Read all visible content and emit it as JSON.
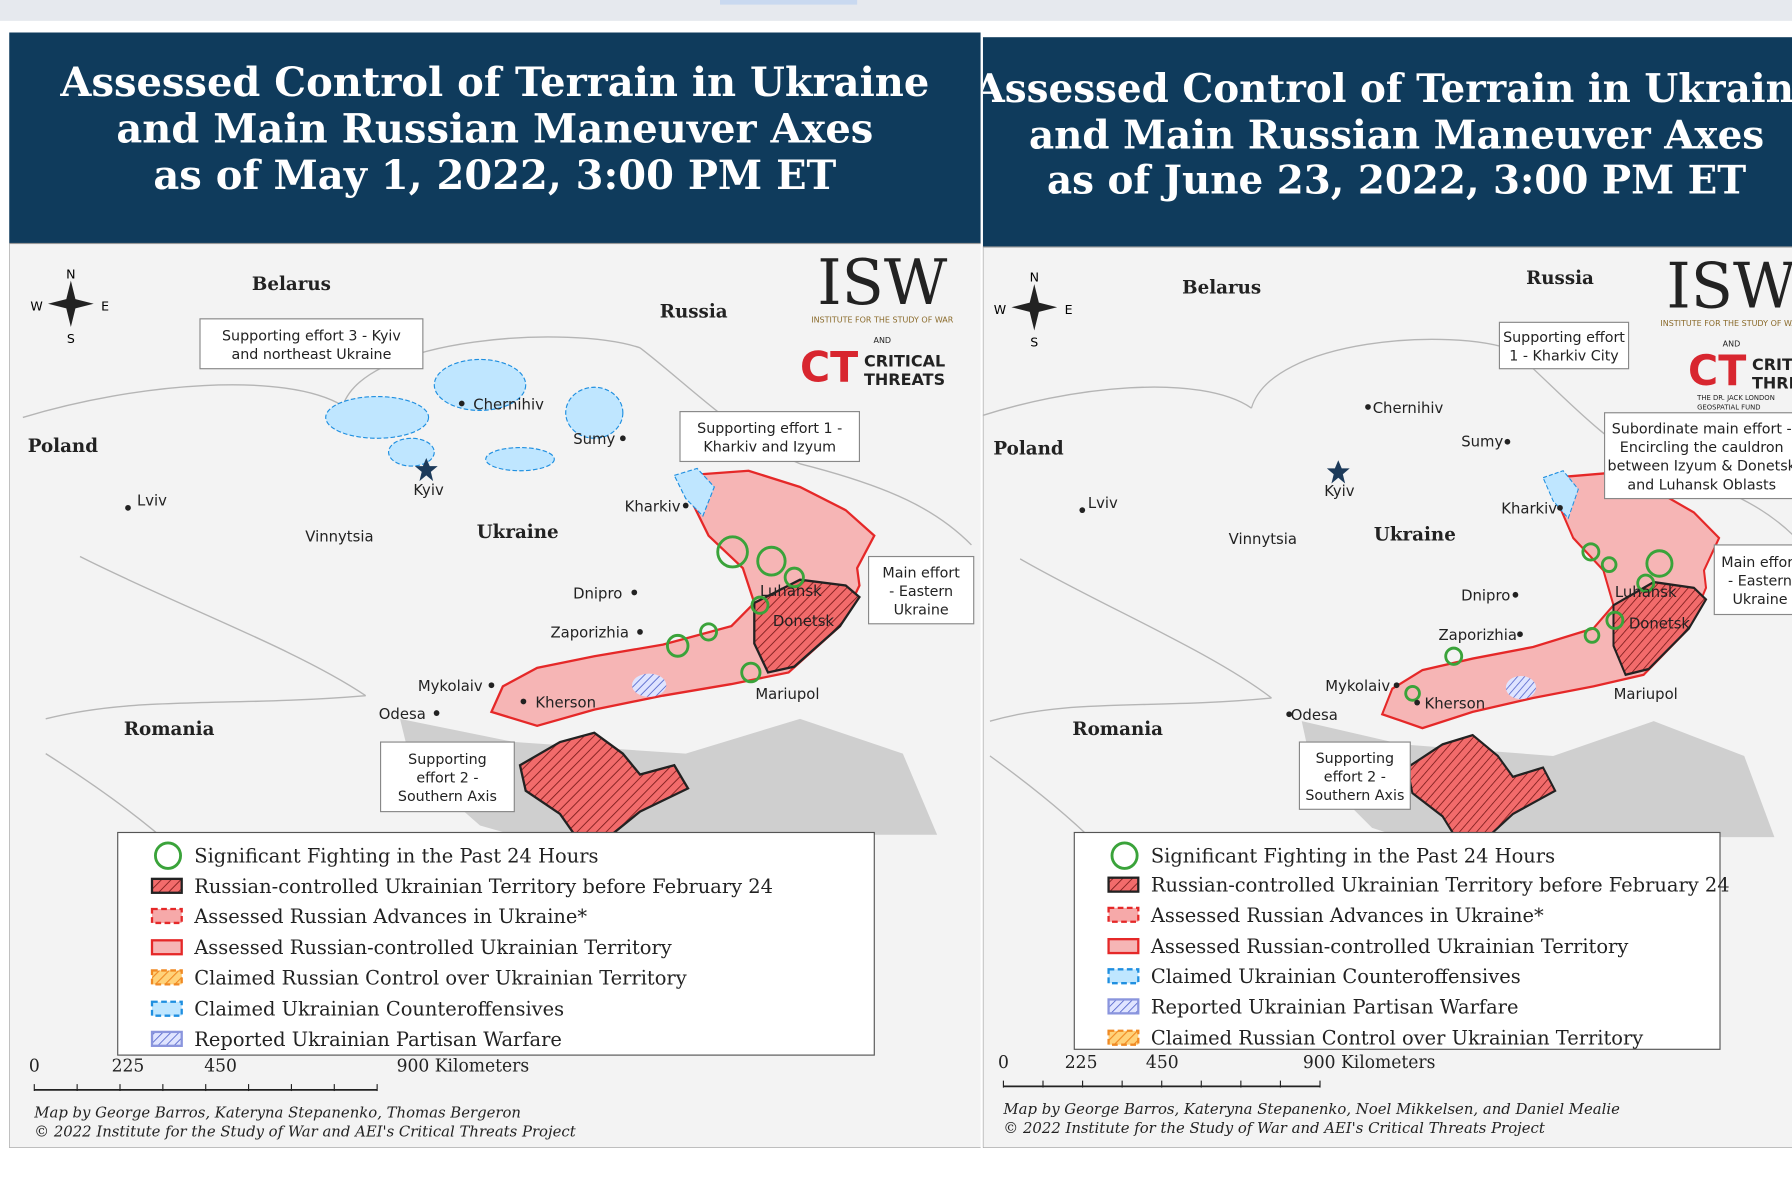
{
  "panels": [
    {
      "title": [
        "Assessed Control of Terrain in Ukraine",
        "and Main Russian Maneuver Axes",
        "as of May 1, 2022, 3:00 PM ET"
      ],
      "compass": [
        "N",
        "W",
        "E",
        "S"
      ],
      "logo": [
        "ISW",
        "INSTITUTE FOR THE STUDY OF WAR",
        "AND",
        "CT",
        "CRITICAL",
        "THREATS"
      ],
      "countries": [
        "Belarus",
        "Russia",
        "Poland",
        "Ukraine",
        "Romania"
      ],
      "cities": [
        "Chernihiv",
        "Kyiv",
        "Sumy",
        "Kharkiv",
        "Lviv",
        "Vinnytsia",
        "Dnipro",
        "Luhansk",
        "Donetsk",
        "Zaporizhia",
        "Mykolaiv",
        "Odesa",
        "Kherson",
        "Mariupol"
      ],
      "callouts": [
        [
          "Supporting effort 3 - Kyiv",
          "and northeast Ukraine"
        ],
        [
          "Supporting effort 1 -",
          "Kharkiv and Izyum"
        ],
        [
          "Main effort",
          "- Eastern",
          "Ukraine"
        ],
        [
          "Supporting",
          "effort 2 -",
          "Southern Axis"
        ]
      ],
      "legend": [
        "Significant Fighting in the Past 24 Hours",
        "Russian-controlled Ukrainian Territory before February 24",
        "Assessed Russian Advances in Ukraine*",
        "Assessed Russian-controlled Ukrainian Territory",
        "Claimed Russian Control over Ukrainian Territory",
        "Claimed Ukrainian Counteroffensives",
        "Reported Ukrainian Partisan Warfare"
      ],
      "scale": [
        "0",
        "225",
        "450",
        "900 Kilometers"
      ],
      "credits": [
        "Map by George Barros, Kateryna Stepanenko, Thomas Bergeron",
        "© 2022 Institute for the Study of War and AEI's Critical Threats Project"
      ]
    },
    {
      "title": [
        "Assessed Control of Terrain in Ukraine",
        "and Main Russian Maneuver Axes",
        "as of June 23, 2022, 3:00 PM ET"
      ],
      "compass": [
        "N",
        "W",
        "E",
        "S"
      ],
      "logo": [
        "ISW",
        "INSTITUTE FOR THE STUDY OF WAR",
        "AND",
        "CT",
        "CRITICAL",
        "THREATS",
        "THE DR. JACK LONDON",
        "GEOSPATIAL FUND"
      ],
      "countries": [
        "Belarus",
        "Russia",
        "Poland",
        "Ukraine",
        "Romania"
      ],
      "cities": [
        "Chernihiv",
        "Kyiv",
        "Sumy",
        "Kharkiv",
        "Lviv",
        "Vinnytsia",
        "Dnipro",
        "Luhansk",
        "Donetsk",
        "Zaporizhia",
        "Mykolaiv",
        "Odesa",
        "Kherson",
        "Mariupol"
      ],
      "callouts": [
        [
          "Supporting effort",
          "1 - Kharkiv City"
        ],
        [
          "Subordinate main effort -",
          "Encircling the cauldron",
          "between Izyum & Donetsk",
          "and Luhansk Oblasts"
        ],
        [
          "Main effort",
          "- Eastern",
          "Ukraine"
        ],
        [
          "Supporting",
          "effort 2 -",
          "Southern Axis"
        ]
      ],
      "legend": [
        "Significant Fighting in the Past 24 Hours",
        "Russian-controlled Ukrainian Territory before February 24",
        "Assessed Russian Advances in Ukraine*",
        "Assessed Russian-controlled Ukrainian Territory",
        "Claimed Ukrainian Counteroffensives",
        "Reported Ukrainian Partisan Warfare",
        "Claimed Russian Control over Ukrainian Territory"
      ],
      "scale": [
        "0",
        "225",
        "450",
        "900 Kilometers"
      ],
      "credits": [
        "Map by George Barros, Kateryna Stepanenko, Noel Mikkelsen, and Daniel Mealie",
        "© 2022 Institute for the Study of War and AEI's Critical Threats Project"
      ]
    }
  ]
}
